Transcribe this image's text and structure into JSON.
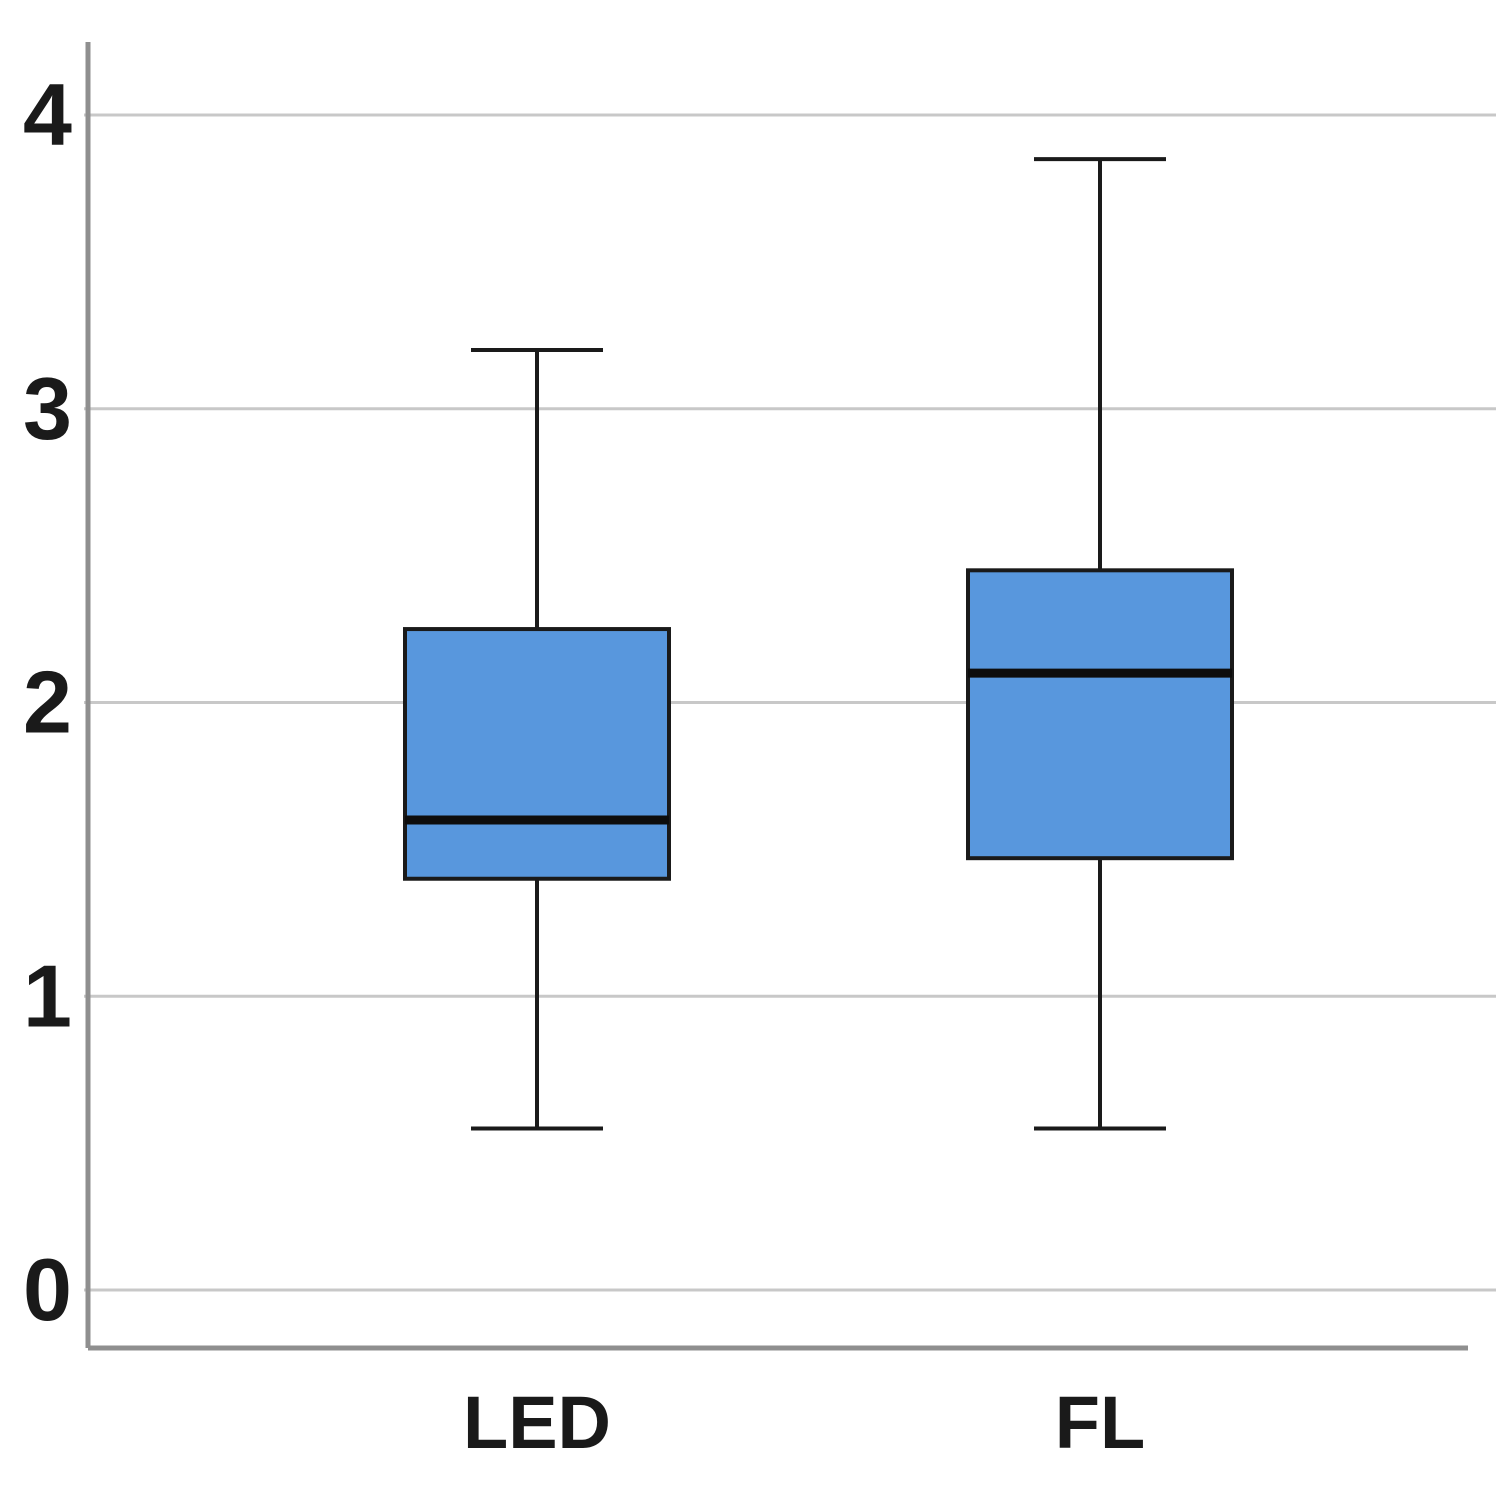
{
  "chart_data": {
    "type": "boxplot",
    "title": "",
    "xlabel": "",
    "ylabel": "",
    "categories": [
      "LED",
      "FL"
    ],
    "series": [
      {
        "name": "LED",
        "min": 0.55,
        "q1": 1.4,
        "median": 1.6,
        "q3": 2.25,
        "max": 3.2
      },
      {
        "name": "FL",
        "min": 0.55,
        "q1": 1.47,
        "median": 2.1,
        "q3": 2.45,
        "max": 3.85
      }
    ],
    "y_ticks": [
      0,
      1,
      2,
      3,
      4
    ],
    "ylim": [
      -0.3,
      4.35
    ],
    "grid": true,
    "legend": false,
    "colors": {
      "box_fill": "#5897DD",
      "box_border": "#1a1a1a",
      "median": "#0d0d0d",
      "whisker": "#1a1a1a",
      "grid": "#c8c8c8",
      "axis": "#8f8f8f",
      "tick_label": "#1a1a1a"
    }
  }
}
